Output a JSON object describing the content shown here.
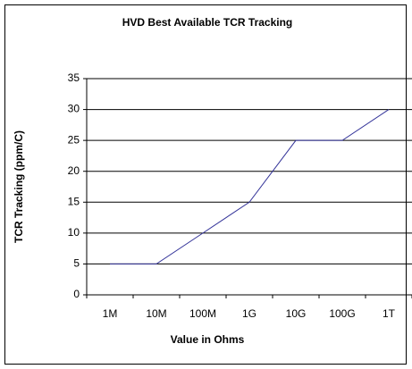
{
  "chart_data": {
    "type": "line",
    "title": "HVD Best Available TCR Tracking",
    "x_label": "Value in Ohms",
    "y_label": "TCR Tracking (ppm/C)",
    "categories": [
      "1M",
      "10M",
      "100M",
      "1G",
      "10G",
      "100G",
      "1T"
    ],
    "series": [
      {
        "name": "TCR Tracking",
        "color": "#333399",
        "values": [
          5,
          5,
          10,
          15,
          25,
          25,
          30
        ]
      }
    ],
    "ylim": [
      0,
      35
    ],
    "yticks": [
      0,
      5,
      10,
      15,
      20,
      25,
      30,
      35
    ],
    "grid": true,
    "legend": false
  }
}
